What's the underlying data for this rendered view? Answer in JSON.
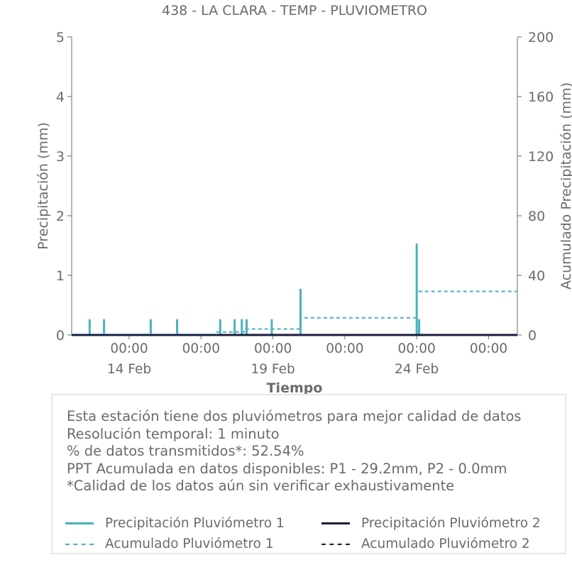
{
  "chart_data": {
    "type": "line",
    "title": "438 - LA CLARA - TEMP - PLUVIOMETRO",
    "xlabel": "Tiempo",
    "ylabel": "Precipitación (mm)",
    "ylabel_right": "Acumulado Precipitación (mm)",
    "ylim": [
      0,
      5
    ],
    "ylim_right": [
      0,
      200
    ],
    "yticks": [
      "0",
      "1",
      "2",
      "3",
      "4",
      "5"
    ],
    "yticks_right": [
      "0",
      "40",
      "80",
      "120",
      "160",
      "200"
    ],
    "x_tick_labels": [
      {
        "time": "00:00",
        "date": "14 Feb"
      },
      {
        "time": "00:00",
        "date": ""
      },
      {
        "time": "00:00",
        "date": "19 Feb"
      },
      {
        "time": "00:00",
        "date": ""
      },
      {
        "time": "00:00",
        "date": "24 Feb"
      },
      {
        "time": "00:00",
        "date": ""
      }
    ],
    "grid": false,
    "series": [
      {
        "name": "Precipitación Pluviómetro 1",
        "color": "#4cb0be",
        "style": "solid",
        "axis": "left",
        "x": [
          "2025-02-12 15:00",
          "2025-02-13 03:00",
          "2025-02-14 18:00",
          "2025-02-15 16:00",
          "2025-02-17 04:00",
          "2025-02-17 16:00",
          "2025-02-17 22:00",
          "2025-02-18 02:00",
          "2025-02-18 23:00",
          "2025-02-19 23:00",
          "2025-02-24 00:00",
          "2025-02-24 02:00"
        ],
        "values": [
          0.25,
          0.25,
          0.25,
          0.25,
          0.25,
          0.25,
          0.25,
          0.25,
          0.25,
          0.76,
          1.52,
          0.25
        ]
      },
      {
        "name": "Precipitación Pluviómetro 2",
        "color": "#1c1c3c",
        "style": "solid",
        "axis": "left",
        "x": [
          "2025-02-12 00:00",
          "2025-02-27 12:00"
        ],
        "values": [
          0,
          0
        ]
      },
      {
        "name": "Acumulado Pluviómetro 1",
        "color": "#4cb0be",
        "style": "dashed",
        "axis": "right",
        "x": [
          "2025-02-12 00:00",
          "2025-02-17 00:00",
          "2025-02-18 00:00",
          "2025-02-19 23:00",
          "2025-02-24 00:00",
          "2025-02-27 12:00"
        ],
        "values": [
          0.5,
          2.0,
          4.0,
          11.5,
          29.2,
          29.2
        ]
      },
      {
        "name": "Acumulado Pluviómetro 2",
        "color": "#1c1c3c",
        "style": "dashed",
        "axis": "right",
        "x": [
          "2025-02-12 00:00",
          "2025-02-27 12:00"
        ],
        "values": [
          0,
          0
        ]
      }
    ]
  },
  "info": {
    "lines": [
      "Esta estación tiene dos pluviómetros para mejor calidad de datos",
      "Resolución temporal: 1 minuto",
      "% de datos transmitidos*: 52.54%",
      "PPT Acumulada en datos disponibles: P1 - 29.2mm, P2 - 0.0mm",
      "*Calidad de los datos aún sin verificar exhaustivamente"
    ]
  },
  "legend": [
    {
      "label": "Precipitación Pluviómetro 1",
      "color": "#4cb0be",
      "style": "solid"
    },
    {
      "label": "Precipitación Pluviómetro 2",
      "color": "#1c1c3c",
      "style": "solid"
    },
    {
      "label": "Acumulado Pluviómetro 1",
      "color": "#4cb0be",
      "style": "dashed"
    },
    {
      "label": "Acumulado Pluviómetro 2",
      "color": "#1c1c3c",
      "style": "dashed"
    }
  ]
}
